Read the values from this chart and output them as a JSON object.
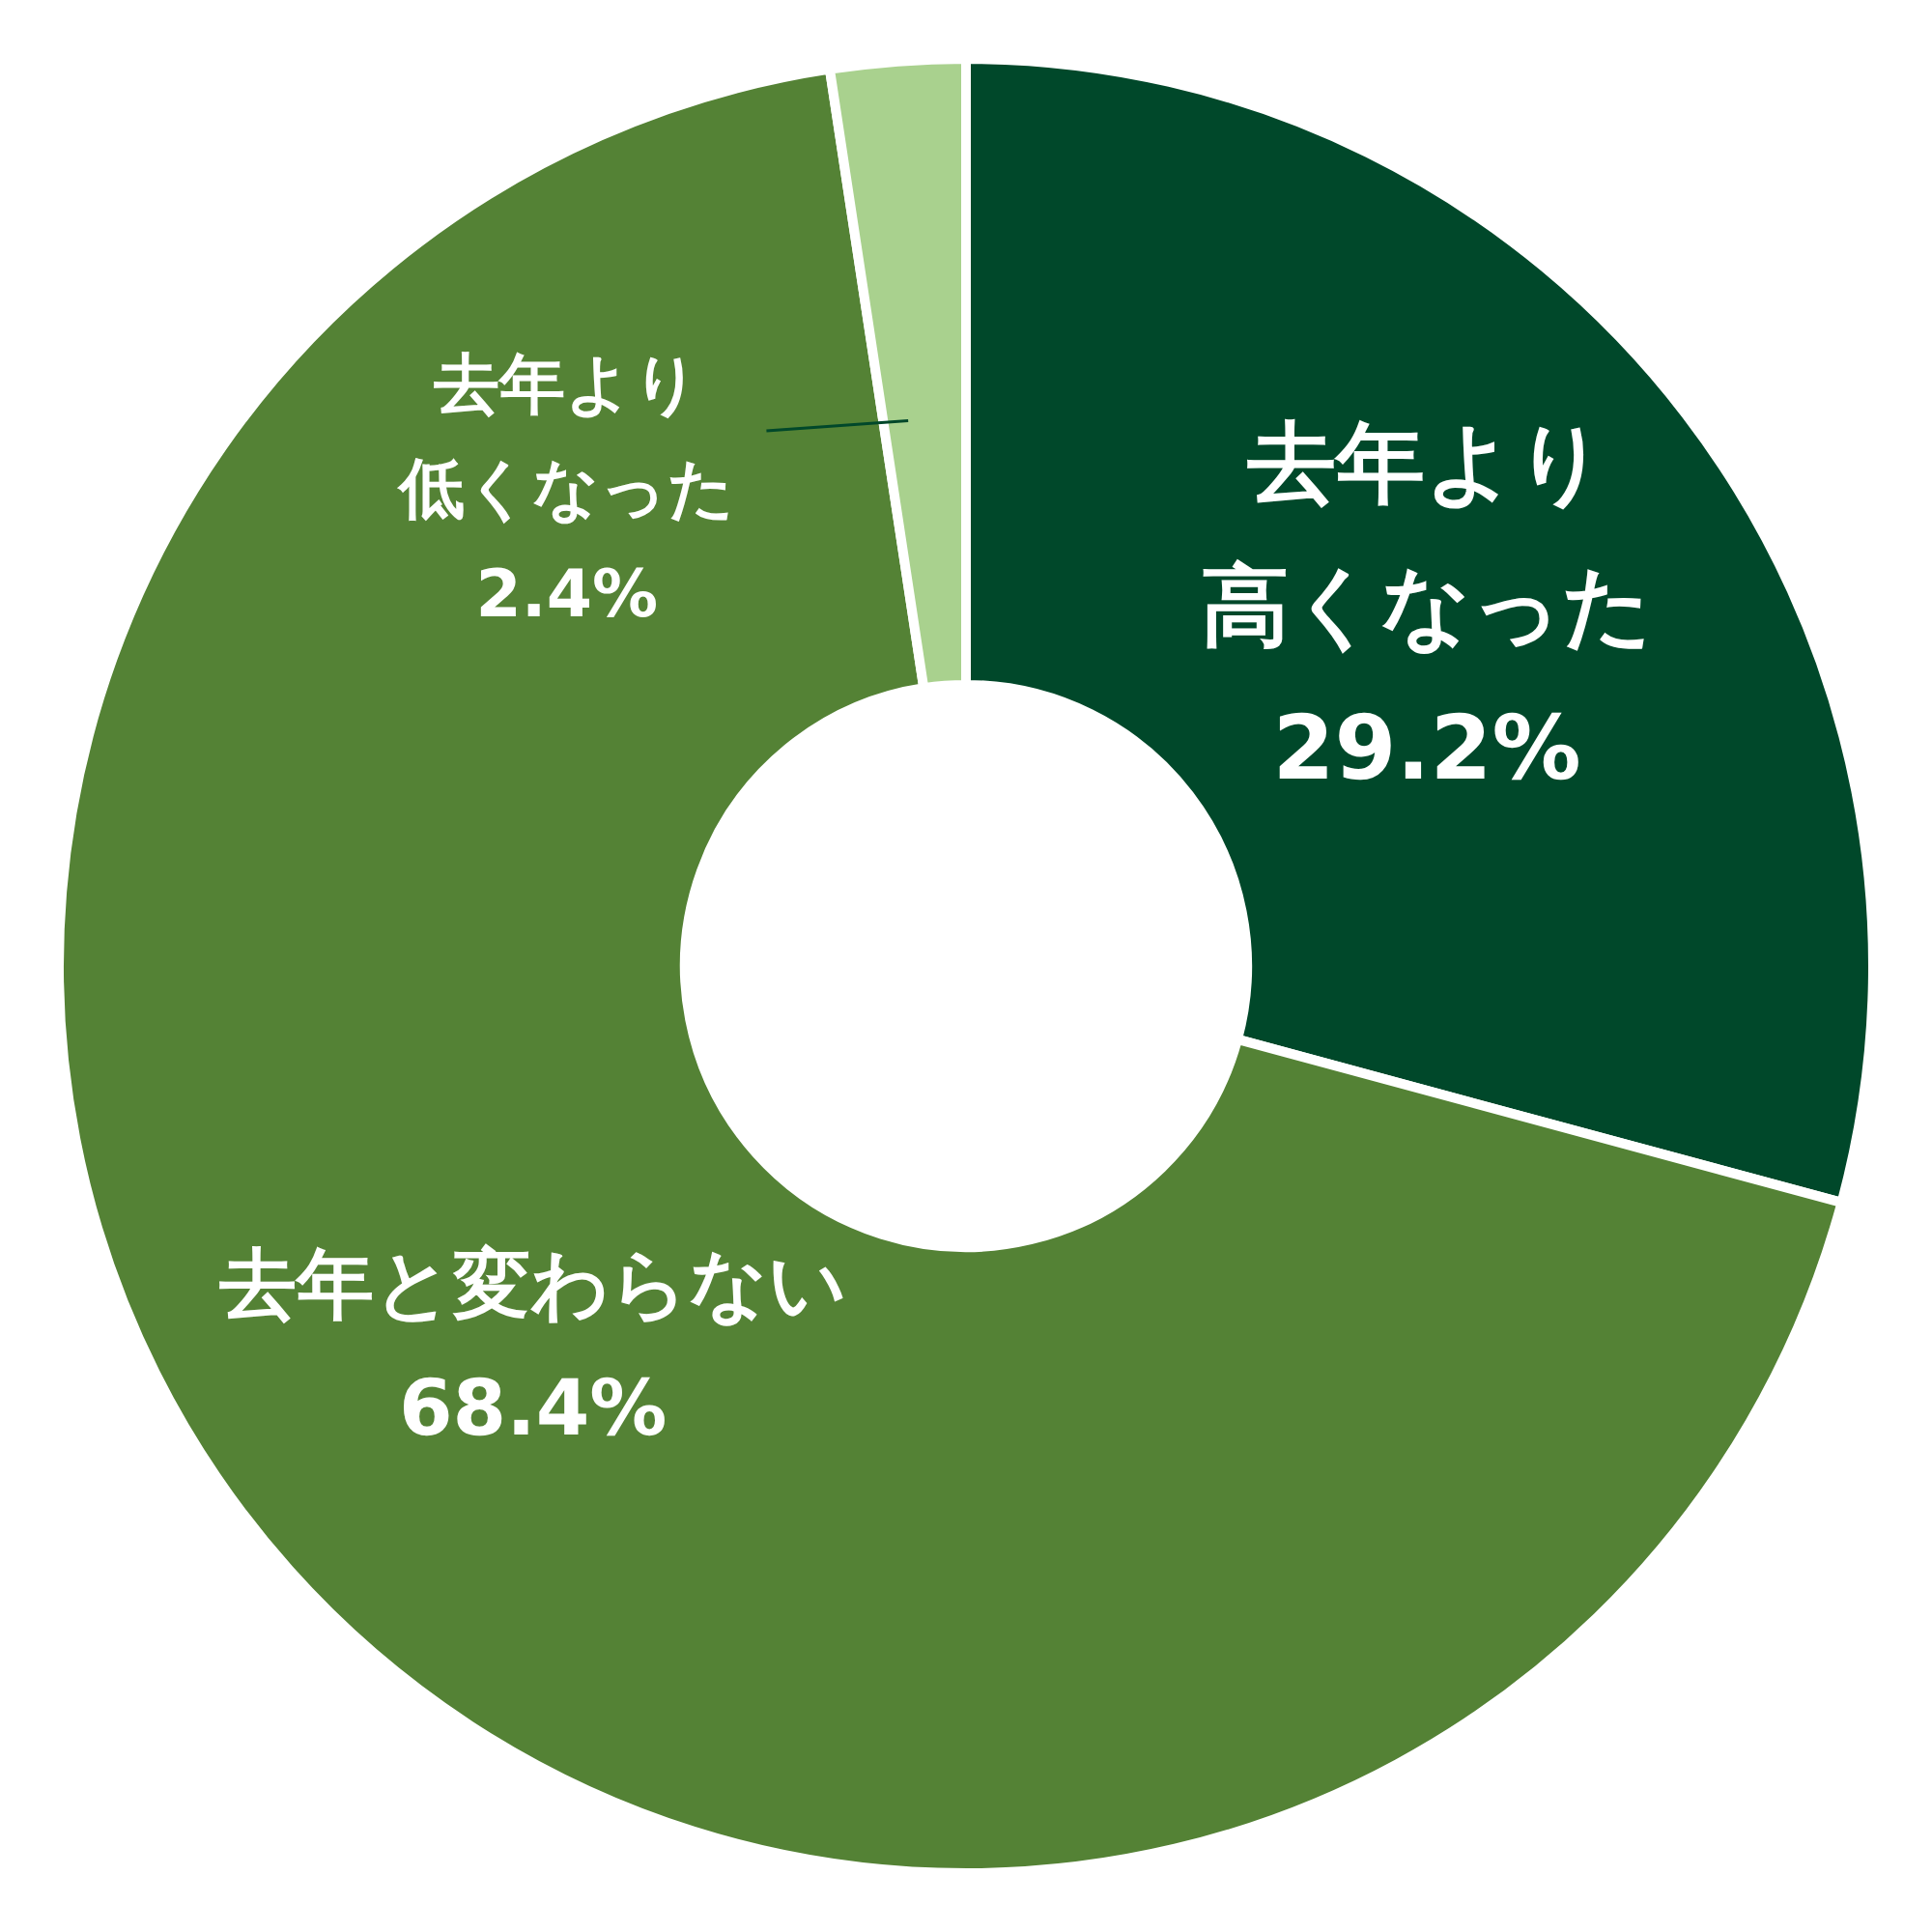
{
  "chart_data": {
    "type": "donut",
    "categories": [
      "去年より高くなった",
      "去年と変わらない",
      "去年より低くなった"
    ],
    "values": [
      29.2,
      68.4,
      2.4
    ],
    "colors": [
      "#00482a",
      "#548235",
      "#a9d18e"
    ],
    "value_labels": [
      "29.2%",
      "68.4%",
      "2.4%"
    ],
    "legend": false
  }
}
